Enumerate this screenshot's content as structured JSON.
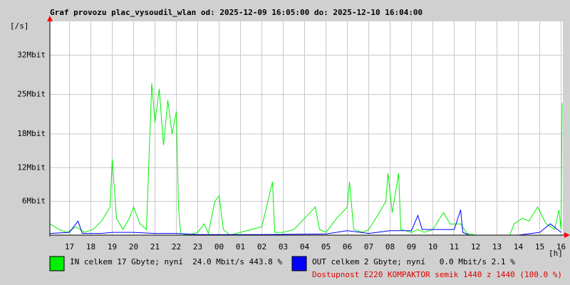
{
  "chart_data": {
    "type": "line",
    "title": "Graf provozu plac_vysoudil_wlan od: 2025-12-09 16:05:00 do: 2025-12-10 16:04:00",
    "y_label": "[/s]",
    "x_label": "[h]",
    "xlim": [
      16.083,
      40.083
    ],
    "xticks": [
      {
        "value": 17,
        "label": "17"
      },
      {
        "value": 18,
        "label": "18"
      },
      {
        "value": 19,
        "label": "19"
      },
      {
        "value": 20,
        "label": "20"
      },
      {
        "value": 21,
        "label": "21"
      },
      {
        "value": 22,
        "label": "22"
      },
      {
        "value": 23,
        "label": "23"
      },
      {
        "value": 24,
        "label": "00"
      },
      {
        "value": 25,
        "label": "01"
      },
      {
        "value": 26,
        "label": "02"
      },
      {
        "value": 27,
        "label": "03"
      },
      {
        "value": 28,
        "label": "04"
      },
      {
        "value": 29,
        "label": "05"
      },
      {
        "value": 30,
        "label": "06"
      },
      {
        "value": 31,
        "label": "07"
      },
      {
        "value": 32,
        "label": "08"
      },
      {
        "value": 33,
        "label": "09"
      },
      {
        "value": 34,
        "label": "10"
      },
      {
        "value": 35,
        "label": "11"
      },
      {
        "value": 36,
        "label": "12"
      },
      {
        "value": 37,
        "label": "13"
      },
      {
        "value": 38,
        "label": "14"
      },
      {
        "value": 39,
        "label": "15"
      },
      {
        "value": 40,
        "label": "16"
      }
    ],
    "ylim": [
      0,
      38
    ],
    "yticks": [
      {
        "value": 6,
        "label": "6Mbit"
      },
      {
        "value": 12,
        "label": "12Mbit"
      },
      {
        "value": 18,
        "label": "18Mbit"
      },
      {
        "value": 25,
        "label": "25Mbit"
      },
      {
        "value": 32,
        "label": "32Mbit"
      }
    ],
    "grid": true,
    "series": [
      {
        "name": "IN celkem 17 Gbyte; nyní  24.0 Mbit/s 443.8 %",
        "color": "#00f000",
        "x": [
          16.1,
          16.5,
          16.9,
          17.3,
          17.7,
          18.1,
          18.5,
          18.9,
          19.0,
          19.2,
          19.5,
          19.8,
          20.0,
          20.3,
          20.6,
          20.85,
          21.0,
          21.2,
          21.4,
          21.6,
          21.8,
          22.0,
          22.1,
          22.2,
          22.6,
          23.0,
          23.3,
          23.5,
          23.8,
          24.0,
          24.2,
          24.5,
          25.0,
          25.5,
          26.0,
          26.5,
          26.6,
          27.0,
          27.5,
          28.0,
          28.5,
          28.7,
          29.0,
          29.5,
          30.0,
          30.1,
          30.3,
          30.7,
          31.0,
          31.5,
          31.8,
          31.9,
          32.1,
          32.4,
          32.5,
          33.0,
          33.3,
          33.6,
          34.0,
          34.5,
          34.8,
          35.3,
          35.6,
          36.0,
          37.0,
          37.6,
          37.8,
          38.2,
          38.5,
          38.9,
          39.3,
          39.7,
          39.9,
          40.0,
          40.05
        ],
        "values": [
          2,
          1,
          0.5,
          1.5,
          0.5,
          1,
          2.5,
          5,
          13.5,
          3,
          1,
          3,
          5,
          2,
          1,
          27,
          20,
          26,
          16,
          24,
          18,
          22,
          5,
          0.3,
          0,
          0.5,
          2,
          0.3,
          6,
          7,
          1,
          0,
          0.5,
          1,
          1.5,
          9.5,
          0.5,
          0.5,
          1,
          3,
          5,
          1,
          0.5,
          3,
          5,
          9.5,
          1,
          0.5,
          1,
          4,
          6,
          11,
          4,
          11,
          1,
          0.5,
          1,
          0.5,
          1,
          4,
          2,
          2,
          0.3,
          0,
          0,
          0,
          2,
          3,
          2.5,
          5,
          2,
          1,
          4.5,
          1,
          23.5
        ]
      },
      {
        "name": "OUT celkem 2 Gbyte; nyní   0.0 Mbit/s 2.1 %",
        "color": "#0000ff",
        "x": [
          16.1,
          17.0,
          17.4,
          17.6,
          18.5,
          19.0,
          20.0,
          21.0,
          22.0,
          23.0,
          26.0,
          29.0,
          30.0,
          31.0,
          32.0,
          33.0,
          33.3,
          33.5,
          34.0,
          35.0,
          35.3,
          35.4,
          35.7,
          38.0,
          39.0,
          39.5,
          40.0
        ],
        "values": [
          0.3,
          0.5,
          2.5,
          0.3,
          0.3,
          0.5,
          0.5,
          0.3,
          0.3,
          0.1,
          0.1,
          0.2,
          0.8,
          0.3,
          0.8,
          0.8,
          3.5,
          1,
          1,
          1,
          4.5,
          0.5,
          0,
          0,
          0.5,
          2,
          0.5
        ]
      }
    ],
    "note": "Dostupnost E220 KOMPAKTOR semik 1440 z 1440 (100.0 %)"
  }
}
